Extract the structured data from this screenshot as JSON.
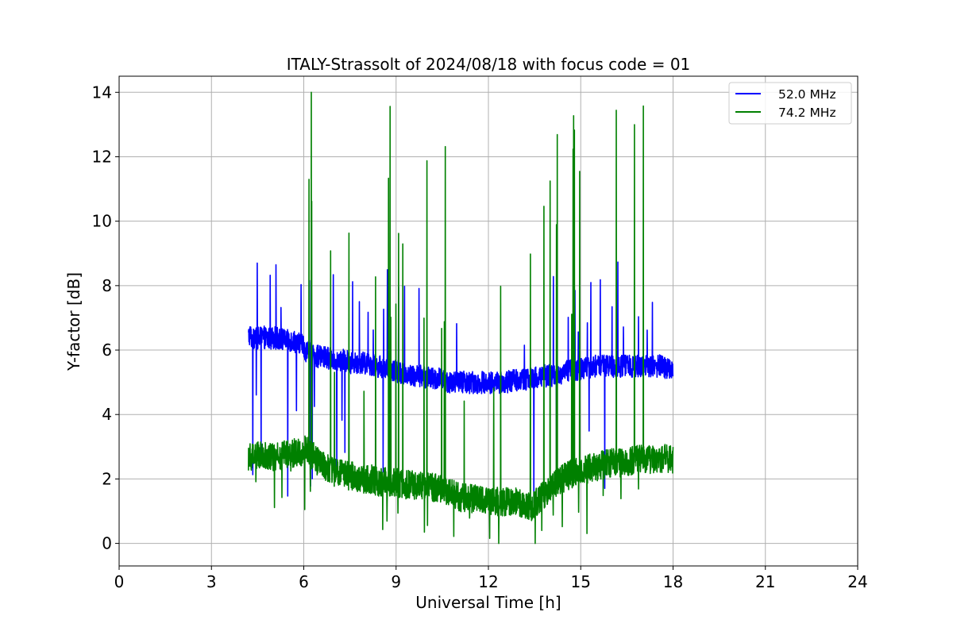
{
  "chart_data": {
    "type": "line",
    "title": "ITALY-Strassolt of 2024/08/18 with focus code = 01",
    "xlabel": "Universal Time [h]",
    "ylabel": "Y-factor [dB]",
    "xlim": [
      0,
      24
    ],
    "ylim": [
      -0.7,
      14.5
    ],
    "xticks": [
      0,
      3,
      6,
      9,
      12,
      15,
      18,
      21,
      24
    ],
    "yticks": [
      0,
      2,
      4,
      6,
      8,
      10,
      12,
      14
    ],
    "grid": true,
    "legend_position": "upper-right",
    "series": [
      {
        "name": "52.0 MHz",
        "color": "#0000ff",
        "x": [
          4.2,
          4.25,
          4.3,
          4.35,
          4.45,
          4.6,
          4.7,
          4.85,
          5.0,
          5.2,
          5.4,
          5.6,
          5.8,
          5.95,
          6.05,
          6.2,
          6.4,
          6.6,
          6.8,
          7.0,
          7.2,
          7.4,
          7.6,
          7.8,
          8.0,
          8.2,
          8.4,
          8.6,
          8.8,
          9.0,
          9.2,
          9.4,
          9.6,
          9.8,
          10.0,
          10.2,
          10.4,
          10.6,
          10.8,
          11.0,
          11.2,
          11.4,
          11.6,
          11.8,
          12.0,
          12.2,
          12.4,
          12.6,
          12.8,
          13.0,
          13.2,
          13.4,
          13.6,
          13.8,
          14.0,
          14.2,
          14.4,
          14.6,
          14.8,
          15.0,
          15.2,
          15.4,
          15.6,
          15.8,
          16.0,
          16.2,
          16.4,
          16.6,
          16.8,
          17.0,
          17.2,
          17.4,
          17.6,
          17.8,
          18.0
        ],
        "y": [
          6.4,
          6.5,
          6.4,
          6.3,
          6.35,
          6.4,
          6.4,
          6.35,
          6.4,
          6.35,
          6.3,
          6.3,
          6.25,
          6.2,
          6.0,
          5.9,
          5.8,
          5.8,
          5.75,
          5.7,
          5.7,
          5.65,
          5.6,
          5.6,
          5.6,
          5.55,
          5.5,
          5.45,
          5.4,
          5.35,
          5.3,
          5.25,
          5.2,
          5.2,
          5.15,
          5.1,
          5.1,
          5.05,
          5.0,
          5.0,
          5.0,
          5.0,
          5.0,
          5.0,
          5.0,
          5.0,
          5.0,
          5.0,
          5.05,
          5.1,
          5.1,
          5.1,
          5.15,
          5.2,
          5.2,
          5.25,
          5.3,
          5.35,
          5.4,
          5.4,
          5.45,
          5.5,
          5.5,
          5.5,
          5.5,
          5.5,
          5.5,
          5.5,
          5.5,
          5.5,
          5.5,
          5.5,
          5.5,
          5.45,
          5.4
        ]
      },
      {
        "name": "74.2 MHz",
        "color": "#008000",
        "x": [
          4.2,
          4.25,
          4.3,
          4.35,
          4.45,
          4.6,
          4.7,
          4.85,
          5.0,
          5.2,
          5.4,
          5.6,
          5.8,
          5.95,
          6.05,
          6.2,
          6.4,
          6.6,
          6.8,
          7.0,
          7.2,
          7.4,
          7.6,
          7.8,
          8.0,
          8.2,
          8.4,
          8.6,
          8.8,
          9.0,
          9.2,
          9.4,
          9.6,
          9.8,
          10.0,
          10.2,
          10.4,
          10.6,
          10.8,
          11.0,
          11.2,
          11.4,
          11.6,
          11.8,
          12.0,
          12.2,
          12.4,
          12.6,
          12.8,
          13.0,
          13.2,
          13.4,
          13.6,
          13.8,
          14.0,
          14.2,
          14.4,
          14.6,
          14.8,
          15.0,
          15.2,
          15.4,
          15.6,
          15.8,
          16.0,
          16.2,
          16.4,
          16.6,
          16.8,
          17.0,
          17.2,
          17.4,
          17.6,
          17.8,
          18.0
        ],
        "y": [
          2.7,
          2.8,
          2.7,
          2.7,
          2.75,
          2.7,
          2.75,
          2.75,
          2.7,
          2.7,
          2.75,
          2.8,
          2.8,
          2.8,
          2.9,
          2.8,
          2.6,
          2.4,
          2.3,
          2.2,
          2.2,
          2.1,
          2.1,
          2.0,
          2.0,
          2.0,
          1.9,
          1.9,
          1.9,
          1.9,
          1.85,
          1.85,
          1.8,
          1.8,
          1.8,
          1.75,
          1.7,
          1.65,
          1.55,
          1.45,
          1.4,
          1.4,
          1.4,
          1.35,
          1.3,
          1.3,
          1.3,
          1.3,
          1.3,
          1.25,
          1.2,
          1.15,
          1.3,
          1.5,
          1.7,
          1.9,
          2.0,
          2.1,
          2.2,
          2.2,
          2.3,
          2.35,
          2.4,
          2.45,
          2.5,
          2.5,
          2.5,
          2.55,
          2.6,
          2.6,
          2.6,
          2.6,
          2.65,
          2.65,
          2.6
        ]
      }
    ]
  }
}
